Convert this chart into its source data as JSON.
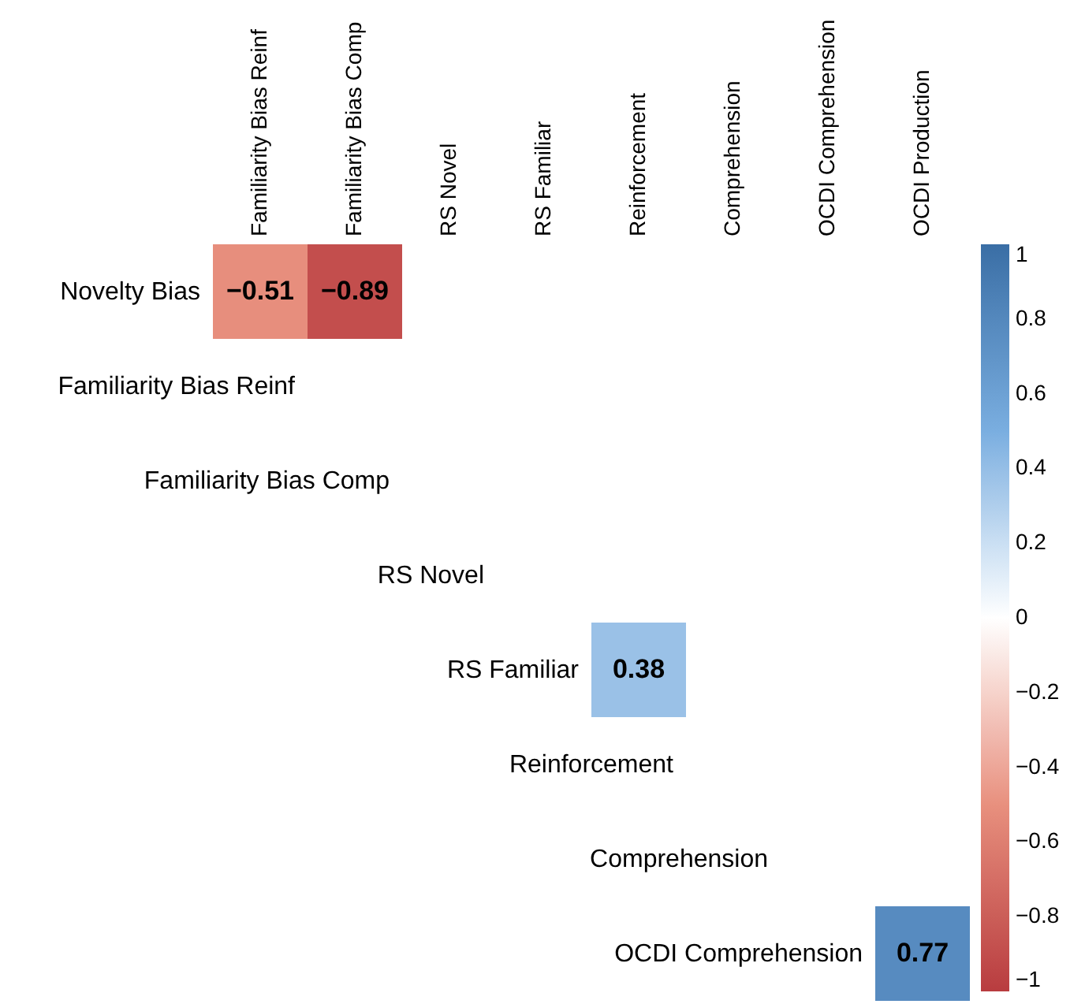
{
  "chart_data": {
    "type": "heatmap",
    "categories": [
      "Familiarity Bias Reinf",
      "Familiarity Bias Comp",
      "RS Novel",
      "RS Familiar",
      "Reinforcement",
      "Comprehension",
      "OCDI Comprehension",
      "OCDI Production"
    ],
    "y_categories": [
      "Novelty Bias",
      "Familiarity Bias Reinf",
      "Familiarity Bias Comp",
      "RS Novel",
      "RS Familiar",
      "Reinforcement",
      "Comprehension",
      "OCDI Comprehension"
    ],
    "cells": [
      [
        -0.51,
        -0.89,
        null,
        null,
        null,
        null,
        null,
        null
      ],
      [
        null,
        null,
        null,
        null,
        null,
        null,
        null,
        null
      ],
      [
        null,
        null,
        null,
        null,
        null,
        null,
        null,
        null
      ],
      [
        null,
        null,
        null,
        null,
        null,
        null,
        null,
        null
      ],
      [
        null,
        null,
        null,
        null,
        0.38,
        null,
        null,
        null
      ],
      [
        null,
        null,
        null,
        null,
        null,
        null,
        null,
        null
      ],
      [
        null,
        null,
        null,
        null,
        null,
        null,
        null,
        null
      ],
      [
        null,
        null,
        null,
        null,
        null,
        null,
        null,
        0.77
      ]
    ],
    "cell_labels": [
      [
        "−0.51",
        "−0.89",
        null,
        null,
        null,
        null,
        null,
        null
      ],
      [
        null,
        null,
        null,
        null,
        null,
        null,
        null,
        null
      ],
      [
        null,
        null,
        null,
        null,
        null,
        null,
        null,
        null
      ],
      [
        null,
        null,
        null,
        null,
        null,
        null,
        null,
        null
      ],
      [
        null,
        null,
        null,
        null,
        "0.38",
        null,
        null,
        null
      ],
      [
        null,
        null,
        null,
        null,
        null,
        null,
        null,
        null
      ],
      [
        null,
        null,
        null,
        null,
        null,
        null,
        null,
        null
      ],
      [
        null,
        null,
        null,
        null,
        null,
        null,
        null,
        "0.77"
      ]
    ],
    "clim": [
      -1,
      1
    ],
    "cticks": [
      {
        "value": -1,
        "label": "−1"
      },
      {
        "value": -0.8,
        "label": "−0.8"
      },
      {
        "value": -0.6,
        "label": "−0.6"
      },
      {
        "value": -0.4,
        "label": "−0.4"
      },
      {
        "value": -0.2,
        "label": "−0.2"
      },
      0,
      0.2,
      0.4,
      0.6,
      0.8,
      1
    ],
    "grid": false
  }
}
